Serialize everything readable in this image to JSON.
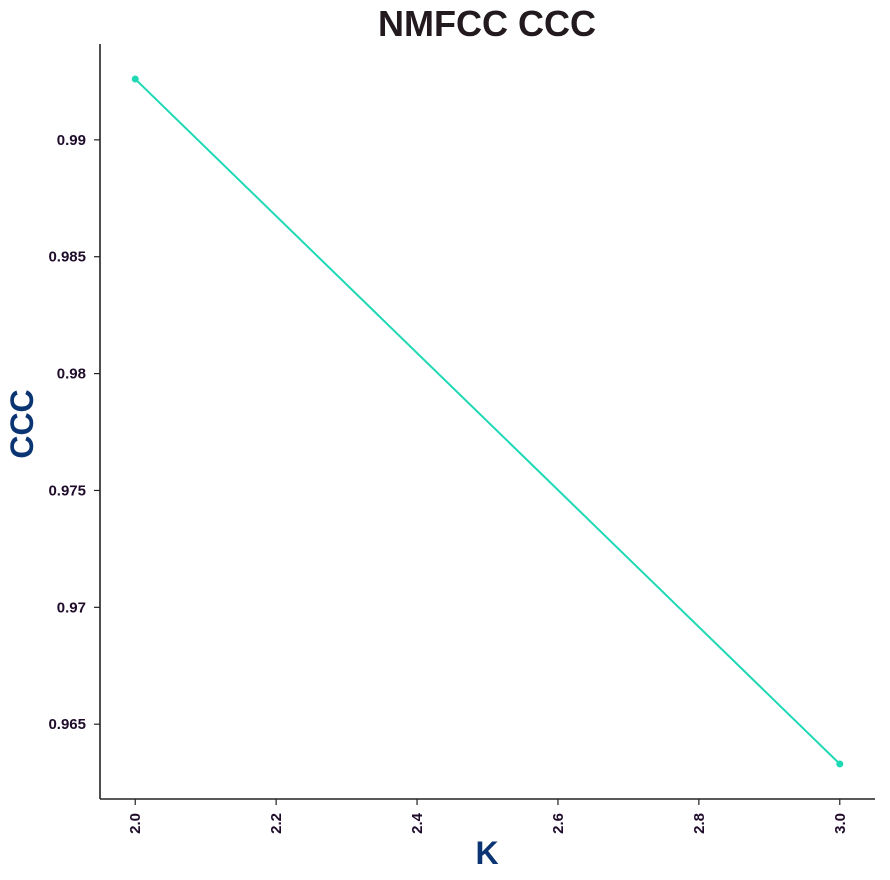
{
  "chart_data": {
    "type": "line",
    "title": "NMFCC CCC",
    "xlabel": "K",
    "ylabel": "CCC",
    "xlim": [
      1.95,
      3.05
    ],
    "ylim": [
      0.9618,
      0.9941
    ],
    "x_ticks": [
      2.0,
      2.2,
      2.4,
      2.6,
      2.8,
      3.0
    ],
    "x_tick_labels": [
      "2.0",
      "2.2",
      "2.4",
      "2.6",
      "2.8",
      "3.0"
    ],
    "y_ticks": [
      0.965,
      0.97,
      0.975,
      0.98,
      0.985,
      0.99
    ],
    "y_tick_labels": [
      "0.965",
      "0.97",
      "0.975",
      "0.98",
      "0.985",
      "0.99"
    ],
    "series": [
      {
        "x": [
          2.0,
          3.0
        ],
        "y": [
          0.9926,
          0.9633
        ],
        "color": "#1ed9b4"
      }
    ],
    "grid": false,
    "legend": "none"
  }
}
